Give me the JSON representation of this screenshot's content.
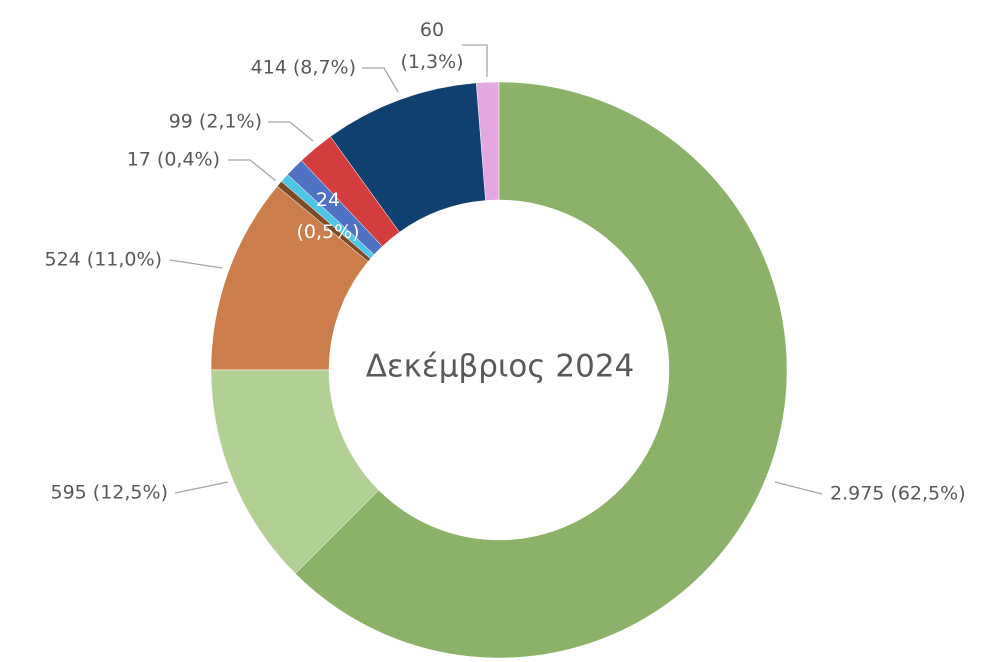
{
  "chart_data": {
    "type": "donut",
    "title": "Δεκέμβριος 2024",
    "series": [
      {
        "values": [
          2975,
          595,
          524,
          17,
          24,
          52,
          99,
          414,
          60
        ],
        "value_labels": [
          "2.975 (62,5%)",
          "595 (12,5%)",
          "524 (11,0%)",
          "17 (0,4%)",
          "24 (0,5%)",
          null,
          "99 (2,1%)",
          "414 (8,7%)",
          "60 (1,3%)"
        ],
        "colors": [
          "#8cb168",
          "#b2d093",
          "#cb7e4b",
          "#7b4a28",
          "#4fc5e6",
          "#4f72c4",
          "#d43d3d",
          "#10406f",
          "#e3a8df"
        ]
      }
    ]
  }
}
